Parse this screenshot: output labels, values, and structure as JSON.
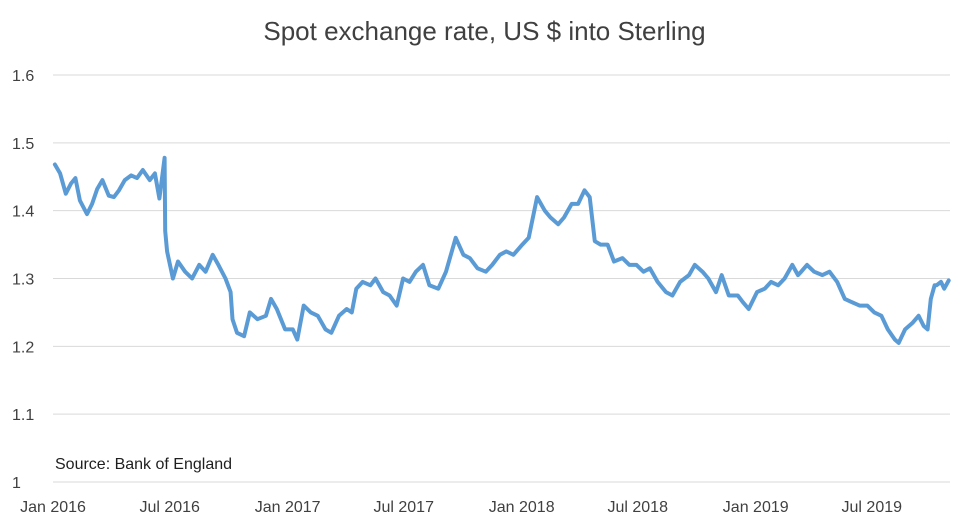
{
  "chart_data": {
    "type": "line",
    "title": "Spot exchange rate, US $ into Sterling",
    "annotations": [
      "Source:  Bank of England"
    ],
    "xlabel": "",
    "ylabel": "",
    "ylim": [
      1,
      1.6
    ],
    "yticks": [
      1,
      1.1,
      1.2,
      1.3,
      1.4,
      1.5,
      1.6
    ],
    "ytick_labels": [
      "1",
      "1.1",
      "1.2",
      "1.3",
      "1.4",
      "1.5",
      "1.6"
    ],
    "xlim": [
      "2016-01-01",
      "2019-10-31"
    ],
    "xticks": [
      "2016-01-01",
      "2016-07-01",
      "2017-01-01",
      "2017-07-01",
      "2018-01-01",
      "2018-07-01",
      "2019-01-01",
      "2019-07-01"
    ],
    "xtick_labels": [
      "Jan 2016",
      "Jul 2016",
      "Jan 2017",
      "Jul 2017",
      "Jan 2018",
      "Jul 2018",
      "Jan 2019",
      "Jul 2019"
    ],
    "grid": "horizontal",
    "legend": "none",
    "line_color": "#5B9BD5",
    "series": [
      {
        "x": [
          "2016-01-04",
          "2016-01-12",
          "2016-01-21",
          "2016-01-29",
          "2016-02-05",
          "2016-02-12",
          "2016-02-23",
          "2016-03-02",
          "2016-03-10",
          "2016-03-18",
          "2016-03-28",
          "2016-04-05",
          "2016-04-13",
          "2016-04-22",
          "2016-05-02",
          "2016-05-11",
          "2016-05-20",
          "2016-05-31",
          "2016-06-08",
          "2016-06-15",
          "2016-06-23",
          "2016-06-24",
          "2016-06-27",
          "2016-07-06",
          "2016-07-14",
          "2016-07-25",
          "2016-08-05",
          "2016-08-16",
          "2016-08-26",
          "2016-09-06",
          "2016-09-15",
          "2016-09-26",
          "2016-10-04",
          "2016-10-07",
          "2016-10-14",
          "2016-10-25",
          "2016-11-03",
          "2016-11-15",
          "2016-11-28",
          "2016-12-06",
          "2016-12-15",
          "2016-12-28",
          "2017-01-09",
          "2017-01-16",
          "2017-01-26",
          "2017-02-06",
          "2017-02-17",
          "2017-03-01",
          "2017-03-10",
          "2017-03-22",
          "2017-04-03",
          "2017-04-11",
          "2017-04-18",
          "2017-04-28",
          "2017-05-10",
          "2017-05-18",
          "2017-05-30",
          "2017-06-09",
          "2017-06-20",
          "2017-06-30",
          "2017-07-10",
          "2017-07-20",
          "2017-07-31",
          "2017-08-10",
          "2017-08-24",
          "2017-09-05",
          "2017-09-14",
          "2017-09-20",
          "2017-10-02",
          "2017-10-12",
          "2017-10-24",
          "2017-11-06",
          "2017-11-16",
          "2017-11-28",
          "2017-12-08",
          "2017-12-19",
          "2018-01-02",
          "2018-01-12",
          "2018-01-25",
          "2018-02-06",
          "2018-02-15",
          "2018-02-27",
          "2018-03-08",
          "2018-03-20",
          "2018-03-30",
          "2018-04-09",
          "2018-04-17",
          "2018-04-25",
          "2018-05-04",
          "2018-05-15",
          "2018-05-25",
          "2018-06-07",
          "2018-06-18",
          "2018-06-29",
          "2018-07-10",
          "2018-07-20",
          "2018-08-01",
          "2018-08-14",
          "2018-08-24",
          "2018-09-05",
          "2018-09-19",
          "2018-09-28",
          "2018-10-10",
          "2018-10-19",
          "2018-10-31",
          "2018-11-09",
          "2018-11-20",
          "2018-12-04",
          "2018-12-12",
          "2018-12-21",
          "2019-01-03",
          "2019-01-15",
          "2019-01-25",
          "2019-02-05",
          "2019-02-15",
          "2019-02-27",
          "2019-03-08",
          "2019-03-13",
          "2019-03-22",
          "2019-04-02",
          "2019-04-15",
          "2019-04-26",
          "2019-05-08",
          "2019-05-20",
          "2019-05-31",
          "2019-06-12",
          "2019-06-24",
          "2019-07-05",
          "2019-07-16",
          "2019-07-26",
          "2019-08-06",
          "2019-08-12",
          "2019-08-22",
          "2019-09-03",
          "2019-09-12",
          "2019-09-20",
          "2019-09-26",
          "2019-10-01",
          "2019-10-07",
          "2019-10-10",
          "2019-10-17",
          "2019-10-22",
          "2019-10-29"
        ],
        "y": [
          1.468,
          1.455,
          1.425,
          1.44,
          1.448,
          1.415,
          1.395,
          1.41,
          1.432,
          1.445,
          1.422,
          1.42,
          1.43,
          1.445,
          1.452,
          1.448,
          1.46,
          1.445,
          1.455,
          1.418,
          1.478,
          1.37,
          1.34,
          1.3,
          1.325,
          1.31,
          1.3,
          1.32,
          1.31,
          1.335,
          1.32,
          1.3,
          1.28,
          1.24,
          1.22,
          1.215,
          1.25,
          1.24,
          1.245,
          1.27,
          1.255,
          1.225,
          1.225,
          1.21,
          1.26,
          1.25,
          1.245,
          1.225,
          1.22,
          1.245,
          1.255,
          1.25,
          1.285,
          1.295,
          1.29,
          1.3,
          1.28,
          1.275,
          1.26,
          1.3,
          1.295,
          1.31,
          1.32,
          1.29,
          1.285,
          1.31,
          1.34,
          1.36,
          1.335,
          1.33,
          1.315,
          1.31,
          1.32,
          1.335,
          1.34,
          1.335,
          1.35,
          1.36,
          1.42,
          1.4,
          1.39,
          1.38,
          1.39,
          1.41,
          1.41,
          1.43,
          1.42,
          1.355,
          1.35,
          1.35,
          1.325,
          1.33,
          1.32,
          1.32,
          1.31,
          1.315,
          1.295,
          1.28,
          1.275,
          1.295,
          1.305,
          1.32,
          1.31,
          1.3,
          1.28,
          1.305,
          1.275,
          1.275,
          1.265,
          1.255,
          1.28,
          1.285,
          1.295,
          1.29,
          1.3,
          1.32,
          1.305,
          1.31,
          1.32,
          1.31,
          1.305,
          1.31,
          1.295,
          1.27,
          1.265,
          1.26,
          1.26,
          1.25,
          1.245,
          1.225,
          1.21,
          1.205,
          1.225,
          1.235,
          1.245,
          1.23,
          1.225,
          1.27,
          1.29,
          1.29,
          1.295,
          1.285,
          1.297
        ]
      }
    ]
  }
}
